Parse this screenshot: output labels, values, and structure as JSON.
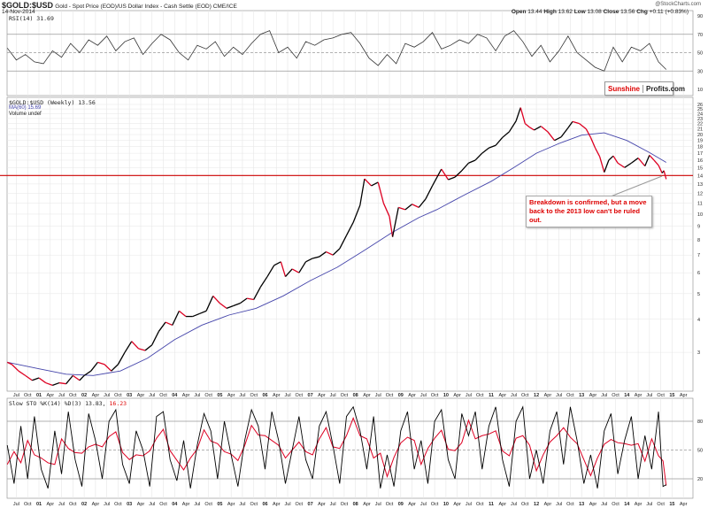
{
  "header": {
    "symbol": "$GOLD:$USD",
    "description": "Gold - Spot Price (EOD)/US Dollar Index - Cash Settle (EOD) CME/ICE",
    "date": "14-Nov-2014",
    "copyright": "@StockCharts.com",
    "ohlc": {
      "open_label": "Open",
      "open": "13.44",
      "high_label": "High",
      "high": "13.62",
      "low_label": "Low",
      "low": "13.08",
      "close_label": "Close",
      "close": "13.56",
      "chg_label": "Chg",
      "chg": "+0.11 (+0.83%)"
    }
  },
  "logo": {
    "part1": "Sunshine",
    "part2": "Profits.com"
  },
  "annotation": "Breakdown is confirmed, but a move back to the 2013 low can't be ruled out.",
  "colors": {
    "price_up": "#000000",
    "price_down": "#dd0022",
    "ma": "#4444aa",
    "support_line": "#cc0000",
    "grid": "#e6e6e6"
  },
  "chart_data": [
    {
      "type": "line",
      "panel": "RSI",
      "legend": "RSI(14) 31.69",
      "ylim": [
        0,
        100
      ],
      "yticks": [
        10,
        30,
        50,
        70,
        90
      ],
      "reference_lines": [
        30,
        50,
        70
      ],
      "x": [
        2000.3,
        2000.5,
        2000.7,
        2000.9,
        2001.1,
        2001.3,
        2001.5,
        2001.7,
        2001.9,
        2002.1,
        2002.3,
        2002.5,
        2002.7,
        2002.9,
        2003.1,
        2003.3,
        2003.5,
        2003.7,
        2003.9,
        2004.1,
        2004.3,
        2004.5,
        2004.7,
        2004.9,
        2005.1,
        2005.3,
        2005.5,
        2005.7,
        2005.9,
        2006.1,
        2006.3,
        2006.5,
        2006.7,
        2006.9,
        2007.1,
        2007.3,
        2007.5,
        2007.7,
        2007.9,
        2008.1,
        2008.3,
        2008.5,
        2008.7,
        2008.9,
        2009.1,
        2009.3,
        2009.5,
        2009.7,
        2009.9,
        2010.1,
        2010.3,
        2010.5,
        2010.7,
        2010.9,
        2011.1,
        2011.3,
        2011.5,
        2011.7,
        2011.9,
        2012.1,
        2012.3,
        2012.5,
        2012.7,
        2012.9,
        2013.1,
        2013.3,
        2013.5,
        2013.7,
        2013.9,
        2014.1,
        2014.3,
        2014.5,
        2014.7,
        2014.87
      ],
      "values": [
        55,
        42,
        48,
        40,
        38,
        52,
        45,
        60,
        50,
        64,
        58,
        68,
        52,
        62,
        66,
        48,
        60,
        70,
        64,
        50,
        42,
        58,
        54,
        62,
        46,
        56,
        48,
        60,
        70,
        74,
        50,
        56,
        44,
        62,
        58,
        64,
        66,
        70,
        72,
        60,
        44,
        36,
        48,
        38,
        60,
        56,
        62,
        72,
        54,
        58,
        64,
        60,
        70,
        66,
        52,
        68,
        74,
        62,
        46,
        58,
        40,
        52,
        68,
        50,
        42,
        34,
        30,
        56,
        40,
        56,
        52,
        60,
        40,
        31.69
      ]
    },
    {
      "type": "line",
      "panel": "price",
      "legend": "$GOLD:$USD (Weekly) 13.56",
      "scale": "log",
      "ylim": [
        2.2,
        26
      ],
      "yticks": [
        3,
        4,
        5,
        6,
        7,
        8,
        9,
        10,
        11,
        12,
        13,
        14,
        15,
        16,
        17,
        18,
        19,
        20,
        21,
        22,
        23,
        24,
        25,
        26
      ],
      "xticks": [
        {
          "t": 2000.5,
          "label": "Jul"
        },
        {
          "t": 2000.75,
          "label": "Oct"
        },
        {
          "t": 2001,
          "label": "01"
        },
        {
          "t": 2001.25,
          "label": "Apr"
        },
        {
          "t": 2001.5,
          "label": "Jul"
        },
        {
          "t": 2001.75,
          "label": "Oct"
        },
        {
          "t": 2002,
          "label": "02"
        },
        {
          "t": 2002.25,
          "label": "Apr"
        },
        {
          "t": 2002.5,
          "label": "Jul"
        },
        {
          "t": 2002.75,
          "label": "Oct"
        },
        {
          "t": 2003,
          "label": "03"
        },
        {
          "t": 2003.25,
          "label": "Apr"
        },
        {
          "t": 2003.5,
          "label": "Jul"
        },
        {
          "t": 2003.75,
          "label": "Oct"
        },
        {
          "t": 2004,
          "label": "04"
        },
        {
          "t": 2004.25,
          "label": "Apr"
        },
        {
          "t": 2004.5,
          "label": "Jul"
        },
        {
          "t": 2004.75,
          "label": "Oct"
        },
        {
          "t": 2005,
          "label": "05"
        },
        {
          "t": 2005.25,
          "label": "Apr"
        },
        {
          "t": 2005.5,
          "label": "Jul"
        },
        {
          "t": 2005.75,
          "label": "Oct"
        },
        {
          "t": 2006,
          "label": "06"
        },
        {
          "t": 2006.25,
          "label": "Apr"
        },
        {
          "t": 2006.5,
          "label": "Jul"
        },
        {
          "t": 2006.75,
          "label": "Oct"
        },
        {
          "t": 2007,
          "label": "07"
        },
        {
          "t": 2007.25,
          "label": "Apr"
        },
        {
          "t": 2007.5,
          "label": "Jul"
        },
        {
          "t": 2007.75,
          "label": "Oct"
        },
        {
          "t": 2008,
          "label": "08"
        },
        {
          "t": 2008.25,
          "label": "Apr"
        },
        {
          "t": 2008.5,
          "label": "Jul"
        },
        {
          "t": 2008.75,
          "label": "Oct"
        },
        {
          "t": 2009,
          "label": "09"
        },
        {
          "t": 2009.25,
          "label": "Apr"
        },
        {
          "t": 2009.5,
          "label": "Jul"
        },
        {
          "t": 2009.75,
          "label": "Oct"
        },
        {
          "t": 2010,
          "label": "10"
        },
        {
          "t": 2010.25,
          "label": "Apr"
        },
        {
          "t": 2010.5,
          "label": "Jul"
        },
        {
          "t": 2010.75,
          "label": "Oct"
        },
        {
          "t": 2011,
          "label": "11"
        },
        {
          "t": 2011.25,
          "label": "Apr"
        },
        {
          "t": 2011.5,
          "label": "Jul"
        },
        {
          "t": 2011.75,
          "label": "Oct"
        },
        {
          "t": 2012,
          "label": "12"
        },
        {
          "t": 2012.25,
          "label": "Apr"
        },
        {
          "t": 2012.5,
          "label": "Jul"
        },
        {
          "t": 2012.75,
          "label": "Oct"
        },
        {
          "t": 2013,
          "label": "13"
        },
        {
          "t": 2013.25,
          "label": "Apr"
        },
        {
          "t": 2013.5,
          "label": "Jul"
        },
        {
          "t": 2013.75,
          "label": "Oct"
        },
        {
          "t": 2014,
          "label": "14"
        },
        {
          "t": 2014.25,
          "label": "Apr"
        },
        {
          "t": 2014.5,
          "label": "Jul"
        },
        {
          "t": 2014.75,
          "label": "Oct"
        },
        {
          "t": 2015,
          "label": "15"
        },
        {
          "t": 2015.25,
          "label": "Apr"
        }
      ],
      "series": [
        {
          "name": "$GOLD:$USD",
          "x": [
            2000.3,
            2000.4,
            2000.55,
            2000.7,
            2000.85,
            2001.0,
            2001.15,
            2001.3,
            2001.45,
            2001.6,
            2001.75,
            2001.9,
            2002.0,
            2002.15,
            2002.3,
            2002.45,
            2002.6,
            2002.75,
            2002.9,
            2003.05,
            2003.2,
            2003.35,
            2003.5,
            2003.65,
            2003.8,
            2003.95,
            2004.1,
            2004.25,
            2004.4,
            2004.55,
            2004.7,
            2004.85,
            2005.0,
            2005.15,
            2005.3,
            2005.45,
            2005.6,
            2005.75,
            2005.9,
            2006.05,
            2006.2,
            2006.35,
            2006.45,
            2006.6,
            2006.75,
            2006.9,
            2007.05,
            2007.2,
            2007.35,
            2007.5,
            2007.65,
            2007.8,
            2007.95,
            2008.1,
            2008.2,
            2008.35,
            2008.5,
            2008.62,
            2008.75,
            2008.82,
            2008.95,
            2009.1,
            2009.25,
            2009.4,
            2009.55,
            2009.7,
            2009.9,
            2010.05,
            2010.2,
            2010.35,
            2010.5,
            2010.65,
            2010.8,
            2010.95,
            2011.1,
            2011.25,
            2011.4,
            2011.55,
            2011.65,
            2011.75,
            2011.85,
            2011.95,
            2012.1,
            2012.25,
            2012.4,
            2012.55,
            2012.7,
            2012.8,
            2012.95,
            2013.1,
            2013.2,
            2013.3,
            2013.4,
            2013.5,
            2013.6,
            2013.7,
            2013.8,
            2013.95,
            2014.1,
            2014.25,
            2014.4,
            2014.5,
            2014.6,
            2014.7,
            2014.78,
            2014.82,
            2014.87
          ],
          "values": [
            2.75,
            2.7,
            2.55,
            2.45,
            2.35,
            2.4,
            2.3,
            2.25,
            2.3,
            2.28,
            2.45,
            2.35,
            2.45,
            2.55,
            2.75,
            2.7,
            2.55,
            2.7,
            3.0,
            3.3,
            3.1,
            3.05,
            3.2,
            3.6,
            3.9,
            3.8,
            4.3,
            4.1,
            4.1,
            4.2,
            4.3,
            4.9,
            4.6,
            4.4,
            4.5,
            4.6,
            4.8,
            4.75,
            5.3,
            5.8,
            6.4,
            6.6,
            5.8,
            6.2,
            6.0,
            6.6,
            6.8,
            6.9,
            7.2,
            7.0,
            7.4,
            8.3,
            9.3,
            10.8,
            13.6,
            12.8,
            13.2,
            11.0,
            9.8,
            8.2,
            10.6,
            10.4,
            10.9,
            10.6,
            11.4,
            12.8,
            14.8,
            13.5,
            13.8,
            14.6,
            15.6,
            16.0,
            17.0,
            17.8,
            18.2,
            19.5,
            20.5,
            22.5,
            25.3,
            22.0,
            21.3,
            20.8,
            21.5,
            20.5,
            19.0,
            19.6,
            21.2,
            22.4,
            22.0,
            21.0,
            19.5,
            17.8,
            16.5,
            14.4,
            16.0,
            16.6,
            15.6,
            15.0,
            15.6,
            16.3,
            15.2,
            16.7,
            16.0,
            15.3,
            14.3,
            14.6,
            13.56
          ]
        },
        {
          "name": "MA(60) 15.69",
          "x": [
            2000.3,
            2001.0,
            2001.6,
            2002.2,
            2002.8,
            2003.4,
            2004.0,
            2004.6,
            2005.2,
            2005.8,
            2006.4,
            2007.0,
            2007.6,
            2008.2,
            2008.8,
            2009.4,
            2009.8,
            2010.4,
            2011.0,
            2011.5,
            2012.0,
            2012.5,
            2013.0,
            2013.5,
            2014.0,
            2014.5,
            2014.87
          ],
          "values": [
            2.75,
            2.6,
            2.48,
            2.45,
            2.55,
            2.85,
            3.35,
            3.8,
            4.15,
            4.4,
            4.9,
            5.6,
            6.3,
            7.3,
            8.5,
            9.7,
            10.4,
            11.8,
            13.3,
            15.0,
            17.0,
            18.5,
            19.9,
            20.3,
            19.0,
            17.1,
            15.69
          ]
        }
      ],
      "legend_extra": "Volume undef",
      "reference_lines": [
        14
      ]
    },
    {
      "type": "line",
      "panel": "Slow STO",
      "legend_prefix": "Slow STO %K(14) %D(3)",
      "k_label": "13.83,",
      "d_label": "16.23",
      "ylim": [
        0,
        100
      ],
      "yticks": [
        20,
        50,
        80
      ],
      "reference_lines": [
        20,
        50,
        80
      ],
      "x": [
        2000.3,
        2000.45,
        2000.6,
        2000.75,
        2000.9,
        2001.05,
        2001.2,
        2001.35,
        2001.5,
        2001.65,
        2001.8,
        2001.95,
        2002.1,
        2002.25,
        2002.4,
        2002.55,
        2002.7,
        2002.85,
        2003.0,
        2003.15,
        2003.3,
        2003.45,
        2003.6,
        2003.75,
        2003.9,
        2004.05,
        2004.2,
        2004.35,
        2004.5,
        2004.65,
        2004.8,
        2004.95,
        2005.1,
        2005.25,
        2005.4,
        2005.55,
        2005.7,
        2005.85,
        2006.0,
        2006.15,
        2006.3,
        2006.45,
        2006.6,
        2006.75,
        2006.9,
        2007.05,
        2007.2,
        2007.35,
        2007.5,
        2007.65,
        2007.8,
        2007.95,
        2008.1,
        2008.25,
        2008.4,
        2008.55,
        2008.7,
        2008.85,
        2009.0,
        2009.15,
        2009.3,
        2009.45,
        2009.6,
        2009.75,
        2009.9,
        2010.05,
        2010.2,
        2010.35,
        2010.5,
        2010.65,
        2010.8,
        2010.95,
        2011.1,
        2011.25,
        2011.4,
        2011.55,
        2011.7,
        2011.85,
        2012.0,
        2012.15,
        2012.3,
        2012.45,
        2012.6,
        2012.75,
        2012.9,
        2013.05,
        2013.2,
        2013.35,
        2013.5,
        2013.65,
        2013.8,
        2013.95,
        2014.1,
        2014.25,
        2014.4,
        2014.55,
        2014.7,
        2014.8,
        2014.87
      ],
      "values": [
        55,
        15,
        75,
        20,
        85,
        30,
        10,
        70,
        25,
        90,
        40,
        12,
        88,
        60,
        20,
        80,
        92,
        35,
        15,
        70,
        50,
        12,
        85,
        90,
        40,
        18,
        60,
        10,
        55,
        88,
        70,
        20,
        80,
        45,
        12,
        60,
        92,
        75,
        30,
        90,
        60,
        15,
        50,
        85,
        40,
        20,
        75,
        90,
        55,
        15,
        85,
        95,
        70,
        30,
        85,
        10,
        45,
        12,
        70,
        90,
        30,
        60,
        15,
        80,
        92,
        40,
        20,
        88,
        65,
        90,
        30,
        75,
        95,
        40,
        12,
        80,
        95,
        20,
        50,
        15,
        70,
        90,
        35,
        95,
        60,
        15,
        45,
        10,
        70,
        88,
        25,
        60,
        85,
        20,
        65,
        30,
        90,
        12,
        13.83
      ],
      "d_values_note": ""
    }
  ]
}
